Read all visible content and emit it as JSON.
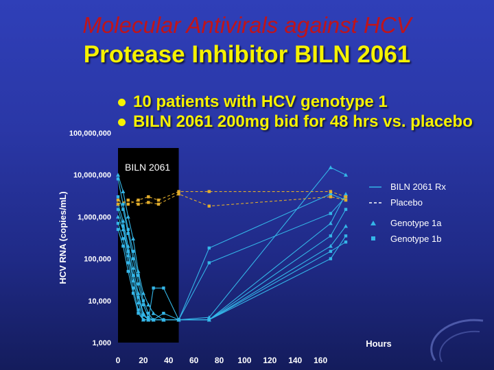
{
  "header": {
    "subtitle": "Molecular Antivirals against HCV",
    "title": "Protease Inhibitor BILN 2061"
  },
  "bullets": [
    "10 patients with HCV genotype 1",
    "BILN 2061 200mg bid for 48 hrs vs. placebo"
  ],
  "colors": {
    "background": "#2a37a6",
    "subtitle": "#c0141a",
    "title": "#f6f200",
    "treated_series": "#34b6e8",
    "placebo_series": "#e2ad2c",
    "dosing_band": "#000000"
  },
  "chart_data": {
    "type": "line",
    "xlabel": "Hours",
    "ylabel": "HCV RNA (copies/mL)",
    "y_scale": "log",
    "xlim": [
      0,
      180
    ],
    "ylim": [
      1000,
      100000000
    ],
    "x_ticks": [
      0,
      20,
      40,
      60,
      80,
      100,
      120,
      140,
      160
    ],
    "y_ticks": [
      {
        "value": 1000,
        "label": "1,000"
      },
      {
        "value": 10000,
        "label": "10,000"
      },
      {
        "value": 100000,
        "label": "100,000"
      },
      {
        "value": 1000000,
        "label": "1,000,000"
      },
      {
        "value": 10000000,
        "label": "10,000,000"
      },
      {
        "value": 100000000,
        "label": "100,000,000"
      }
    ],
    "shaded_band": {
      "x": [
        0,
        48
      ],
      "label": "BILN 2061"
    },
    "legend": {
      "position": "right",
      "items": [
        {
          "label": "BILN 2061 Rx",
          "symbol": "solid-line"
        },
        {
          "label": "Placebo",
          "symbol": "dashed-line"
        },
        {
          "label": "Genotype 1a",
          "symbol": "triangle"
        },
        {
          "label": "Genotype 1b",
          "symbol": "square"
        }
      ]
    },
    "series": [
      {
        "group": "BILN 2061 Rx",
        "genotype": "1a",
        "points": [
          [
            0,
            10000000
          ],
          [
            4,
            4000000
          ],
          [
            8,
            1000000
          ],
          [
            12,
            300000
          ],
          [
            16,
            50000
          ],
          [
            20,
            15000
          ],
          [
            24,
            8000
          ],
          [
            28,
            5000
          ],
          [
            36,
            3500
          ],
          [
            48,
            3500
          ],
          [
            72,
            4000
          ],
          [
            168,
            15000000
          ],
          [
            180,
            10000000
          ]
        ]
      },
      {
        "group": "BILN 2061 Rx",
        "genotype": "1b",
        "points": [
          [
            0,
            8000000
          ],
          [
            4,
            2000000
          ],
          [
            8,
            500000
          ],
          [
            12,
            150000
          ],
          [
            16,
            40000
          ],
          [
            20,
            10000
          ],
          [
            24,
            5000
          ],
          [
            28,
            3500
          ],
          [
            36,
            3500
          ],
          [
            48,
            3500
          ],
          [
            72,
            180000
          ],
          [
            168,
            3500000
          ],
          [
            180,
            2500000
          ]
        ]
      },
      {
        "group": "BILN 2061 Rx",
        "genotype": "1b",
        "points": [
          [
            0,
            3000000
          ],
          [
            4,
            1500000
          ],
          [
            8,
            400000
          ],
          [
            12,
            100000
          ],
          [
            16,
            25000
          ],
          [
            20,
            8000
          ],
          [
            24,
            4000
          ],
          [
            28,
            3500
          ],
          [
            36,
            3500
          ],
          [
            48,
            3500
          ],
          [
            72,
            80000
          ],
          [
            168,
            1200000
          ],
          [
            180,
            3000000
          ]
        ]
      },
      {
        "group": "BILN 2061 Rx",
        "genotype": "1a",
        "points": [
          [
            0,
            2000000
          ],
          [
            4,
            800000
          ],
          [
            8,
            200000
          ],
          [
            12,
            60000
          ],
          [
            16,
            15000
          ],
          [
            20,
            5000
          ],
          [
            24,
            3500
          ],
          [
            28,
            3500
          ],
          [
            36,
            3500
          ],
          [
            48,
            3500
          ],
          [
            72,
            3500
          ],
          [
            168,
            700000
          ],
          [
            180,
            3500000
          ]
        ]
      },
      {
        "group": "BILN 2061 Rx",
        "genotype": "1b",
        "points": [
          [
            0,
            1500000
          ],
          [
            4,
            600000
          ],
          [
            8,
            150000
          ],
          [
            12,
            40000
          ],
          [
            16,
            12000
          ],
          [
            20,
            4500
          ],
          [
            24,
            3500
          ],
          [
            28,
            20000
          ],
          [
            36,
            20000
          ],
          [
            48,
            3500
          ],
          [
            72,
            3500
          ],
          [
            168,
            350000
          ],
          [
            180,
            1500000
          ]
        ]
      },
      {
        "group": "BILN 2061 Rx",
        "genotype": "1a",
        "points": [
          [
            0,
            1000000
          ],
          [
            4,
            500000
          ],
          [
            8,
            120000
          ],
          [
            12,
            30000
          ],
          [
            16,
            9000
          ],
          [
            20,
            3500
          ],
          [
            24,
            3500
          ],
          [
            28,
            3500
          ],
          [
            36,
            3500
          ],
          [
            48,
            3500
          ],
          [
            72,
            3500
          ],
          [
            168,
            200000
          ],
          [
            180,
            600000
          ]
        ]
      },
      {
        "group": "BILN 2061 Rx",
        "genotype": "1b",
        "points": [
          [
            0,
            700000
          ],
          [
            4,
            300000
          ],
          [
            8,
            80000
          ],
          [
            12,
            20000
          ],
          [
            16,
            6000
          ],
          [
            20,
            3500
          ],
          [
            24,
            3500
          ],
          [
            28,
            3500
          ],
          [
            36,
            3500
          ],
          [
            48,
            3500
          ],
          [
            72,
            3500
          ],
          [
            168,
            100000
          ],
          [
            180,
            350000
          ]
        ]
      },
      {
        "group": "BILN 2061 Rx",
        "genotype": "1b",
        "points": [
          [
            0,
            500000
          ],
          [
            4,
            200000
          ],
          [
            8,
            50000
          ],
          [
            12,
            15000
          ],
          [
            16,
            5000
          ],
          [
            20,
            3500
          ],
          [
            24,
            3500
          ],
          [
            28,
            3500
          ],
          [
            36,
            5000
          ],
          [
            48,
            3500
          ],
          [
            72,
            3500
          ],
          [
            168,
            150000
          ],
          [
            180,
            250000
          ]
        ]
      },
      {
        "group": "Placebo",
        "genotype": "1b",
        "points": [
          [
            0,
            2500000
          ],
          [
            8,
            2000000
          ],
          [
            16,
            2500000
          ],
          [
            24,
            3000000
          ],
          [
            32,
            2500000
          ],
          [
            48,
            4000000
          ],
          [
            72,
            4000000
          ],
          [
            168,
            4000000
          ],
          [
            180,
            3000000
          ]
        ]
      },
      {
        "group": "Placebo",
        "genotype": "1b",
        "points": [
          [
            0,
            2000000
          ],
          [
            8,
            2500000
          ],
          [
            16,
            2000000
          ],
          [
            24,
            2200000
          ],
          [
            32,
            2000000
          ],
          [
            48,
            3500000
          ],
          [
            72,
            1800000
          ],
          [
            168,
            3000000
          ],
          [
            180,
            2500000
          ]
        ]
      }
    ]
  }
}
